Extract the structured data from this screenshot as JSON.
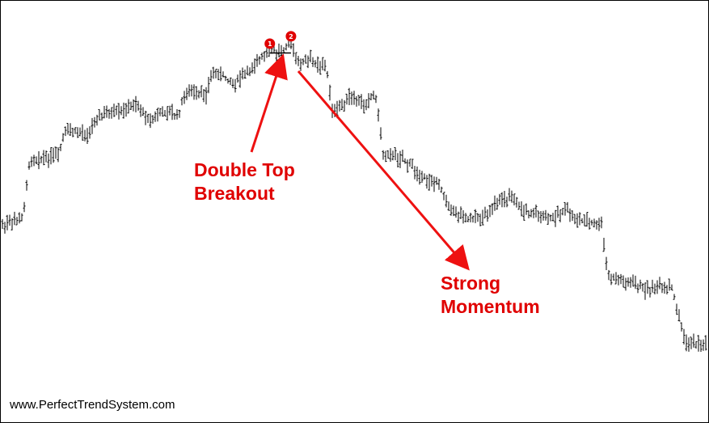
{
  "chart_data": {
    "type": "line",
    "style": "OHLC price bars",
    "title": "",
    "xlabel": "",
    "ylabel": "",
    "axes_visible": false,
    "grid": false,
    "ylim": [
      0,
      100
    ],
    "xlim": [
      0,
      100
    ],
    "price_path": [
      {
        "x": 0,
        "y": 43
      },
      {
        "x": 3,
        "y": 45
      },
      {
        "x": 4,
        "y": 61
      },
      {
        "x": 8,
        "y": 62
      },
      {
        "x": 9,
        "y": 69
      },
      {
        "x": 12,
        "y": 68
      },
      {
        "x": 14,
        "y": 73
      },
      {
        "x": 17,
        "y": 74
      },
      {
        "x": 19,
        "y": 76
      },
      {
        "x": 21,
        "y": 72
      },
      {
        "x": 23,
        "y": 74
      },
      {
        "x": 25,
        "y": 73
      },
      {
        "x": 26,
        "y": 79
      },
      {
        "x": 29,
        "y": 79
      },
      {
        "x": 30,
        "y": 85
      },
      {
        "x": 33,
        "y": 82
      },
      {
        "x": 35,
        "y": 85
      },
      {
        "x": 36,
        "y": 87
      },
      {
        "x": 38,
        "y": 91
      },
      {
        "x": 39,
        "y": 90
      },
      {
        "x": 41,
        "y": 93
      },
      {
        "x": 42,
        "y": 87
      },
      {
        "x": 44,
        "y": 88
      },
      {
        "x": 46,
        "y": 86
      },
      {
        "x": 47,
        "y": 73
      },
      {
        "x": 49,
        "y": 78
      },
      {
        "x": 51,
        "y": 76
      },
      {
        "x": 53,
        "y": 79
      },
      {
        "x": 54,
        "y": 63
      },
      {
        "x": 57,
        "y": 61
      },
      {
        "x": 60,
        "y": 56
      },
      {
        "x": 62,
        "y": 54
      },
      {
        "x": 64,
        "y": 47
      },
      {
        "x": 66,
        "y": 45
      },
      {
        "x": 68,
        "y": 45
      },
      {
        "x": 70,
        "y": 49
      },
      {
        "x": 72,
        "y": 51
      },
      {
        "x": 74,
        "y": 47
      },
      {
        "x": 76,
        "y": 46
      },
      {
        "x": 78,
        "y": 45
      },
      {
        "x": 80,
        "y": 48
      },
      {
        "x": 81,
        "y": 45
      },
      {
        "x": 83,
        "y": 44
      },
      {
        "x": 85,
        "y": 43
      },
      {
        "x": 86,
        "y": 29
      },
      {
        "x": 88,
        "y": 28
      },
      {
        "x": 91,
        "y": 26
      },
      {
        "x": 93,
        "y": 26
      },
      {
        "x": 95,
        "y": 26
      },
      {
        "x": 96,
        "y": 18
      },
      {
        "x": 97,
        "y": 11
      },
      {
        "x": 100,
        "y": 11
      }
    ],
    "double_top": {
      "peak1": {
        "x": 38,
        "y": 91
      },
      "peak2": {
        "x": 41,
        "y": 93
      },
      "neckline": 90
    },
    "markers": [
      {
        "label": "1",
        "x": 38,
        "y": 91
      },
      {
        "label": "2",
        "x": 41,
        "y": 93
      }
    ],
    "annotations": [
      {
        "lines": [
          "Double Top",
          "Breakout"
        ]
      },
      {
        "lines": [
          "Strong",
          "Momentum"
        ]
      }
    ],
    "watermark": "www.PerfectTrendSystem.com",
    "colors": {
      "bars": "#000000",
      "annotation": "#e00000",
      "arrow": "#ee1111",
      "marker": "#e00000",
      "background": "#ffffff"
    }
  }
}
